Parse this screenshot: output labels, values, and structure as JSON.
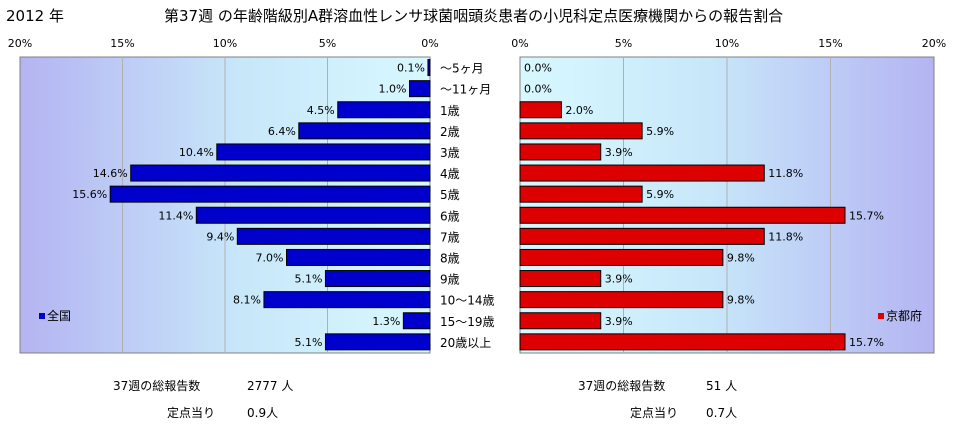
{
  "header": {
    "year": "2012 年",
    "title": "第37週 の年齢階級別A群溶血性レンサ球菌咽頭炎患者の小児科定点医療機関からの報告割合"
  },
  "chart_data": [
    {
      "type": "bar",
      "orientation": "horizontal",
      "direction": "reversed",
      "legend": "全国",
      "legend_position": "bottom-left",
      "color": "#0000cc",
      "xlim": [
        0,
        20
      ],
      "xticks": [
        "20%",
        "15%",
        "10%",
        "5%",
        "0%"
      ],
      "grid": true,
      "values": [
        0.1,
        1.0,
        4.5,
        6.4,
        10.4,
        14.6,
        15.6,
        11.4,
        9.4,
        7.0,
        5.1,
        8.1,
        1.3,
        5.1
      ],
      "value_labels": [
        "0.1%",
        "1.0%",
        "4.5%",
        "6.4%",
        "10.4%",
        "14.6%",
        "15.6%",
        "11.4%",
        "9.4%",
        "7.0%",
        "5.1%",
        "8.1%",
        "1.3%",
        "5.1%"
      ]
    },
    {
      "type": "bar",
      "orientation": "horizontal",
      "legend": "京都府",
      "legend_position": "bottom-right",
      "color": "#dd0000",
      "xlim": [
        0,
        20
      ],
      "xticks": [
        "0%",
        "5%",
        "10%",
        "15%",
        "20%"
      ],
      "grid": true,
      "values": [
        0.0,
        0.0,
        2.0,
        5.9,
        3.9,
        11.8,
        5.9,
        15.7,
        11.8,
        9.8,
        3.9,
        9.8,
        3.9,
        15.7
      ],
      "value_labels": [
        "0.0%",
        "0.0%",
        "2.0%",
        "5.9%",
        "3.9%",
        "11.8%",
        "5.9%",
        "15.7%",
        "11.8%",
        "9.8%",
        "3.9%",
        "9.8%",
        "3.9%",
        "15.7%"
      ]
    }
  ],
  "categories": [
    "〜5ヶ月",
    "〜11ヶ月",
    "1歳",
    "2歳",
    "3歳",
    "4歳",
    "5歳",
    "6歳",
    "7歳",
    "8歳",
    "9歳",
    "10〜14歳",
    "15〜19歳",
    "20歳以上"
  ],
  "footer": {
    "left": {
      "reports_label": "37週の総報告数",
      "reports_value": "2777 人",
      "per_site_label": "定点当り",
      "per_site_value": "0.9人"
    },
    "right": {
      "reports_label": "37週の総報告数",
      "reports_value": "51 人",
      "per_site_label": "定点当り",
      "per_site_value": "0.7人"
    }
  }
}
